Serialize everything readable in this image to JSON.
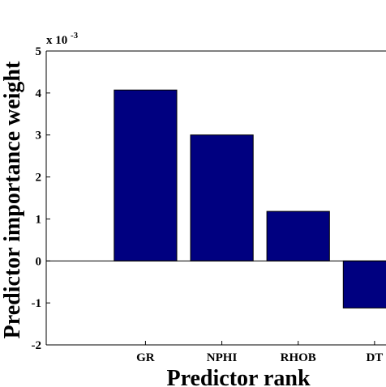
{
  "chart_data": {
    "type": "bar",
    "categories": [
      "GR",
      "NPHI",
      "RHOB",
      "DT"
    ],
    "values": [
      4.07,
      3.0,
      1.18,
      -1.12
    ],
    "value_scale_note": "x 10^-3",
    "exponent_label": {
      "base": "x 10",
      "exponent": "-3"
    },
    "xlabel": "Predictor rank",
    "ylabel": "Predictor importance weight",
    "ylim": [
      -2,
      5
    ],
    "yticks": [
      -2,
      -1,
      0,
      1,
      2,
      3,
      4,
      5
    ],
    "grid": false,
    "legend": "none",
    "bar_color": "#000080"
  }
}
